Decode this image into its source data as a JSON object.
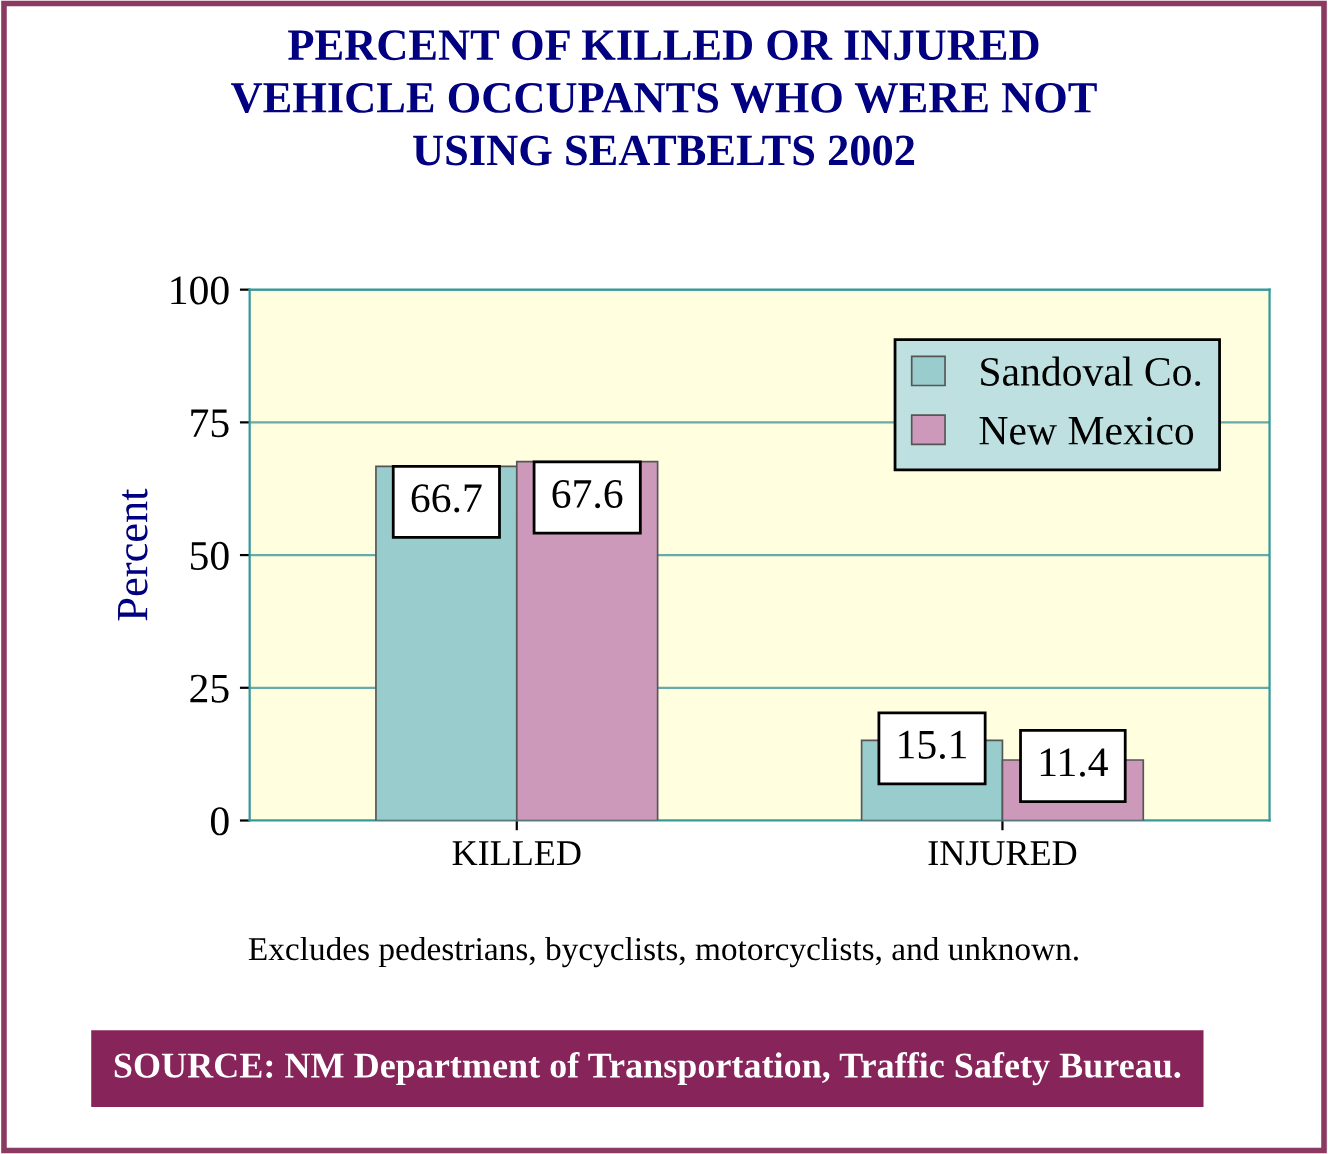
{
  "chart_data": {
    "type": "bar",
    "title": "PERCENT OF KILLED OR INJURED\nVEHICLE OCCUPANTS WHO WERE NOT\nUSING SEATBELTS 2002",
    "ylabel": "Percent",
    "categories": [
      "KILLED",
      "INJURED"
    ],
    "series": [
      {
        "name": "Sandoval Co.",
        "color": "#99cccc",
        "values": [
          66.7,
          15.1
        ]
      },
      {
        "name": "New Mexico",
        "color": "#cc99bb",
        "values": [
          67.6,
          11.4
        ]
      }
    ],
    "ylim": [
      0,
      100
    ],
    "yticks": [
      0,
      25,
      50,
      75,
      100
    ],
    "grid": "y",
    "legend": "top right",
    "data_labels": true,
    "annotations": [
      "Excludes pedestrians, bycyclists, motorcyclists, and unknown.",
      "SOURCE: NM Department of Transportation, Traffic Safety Bureau."
    ]
  }
}
